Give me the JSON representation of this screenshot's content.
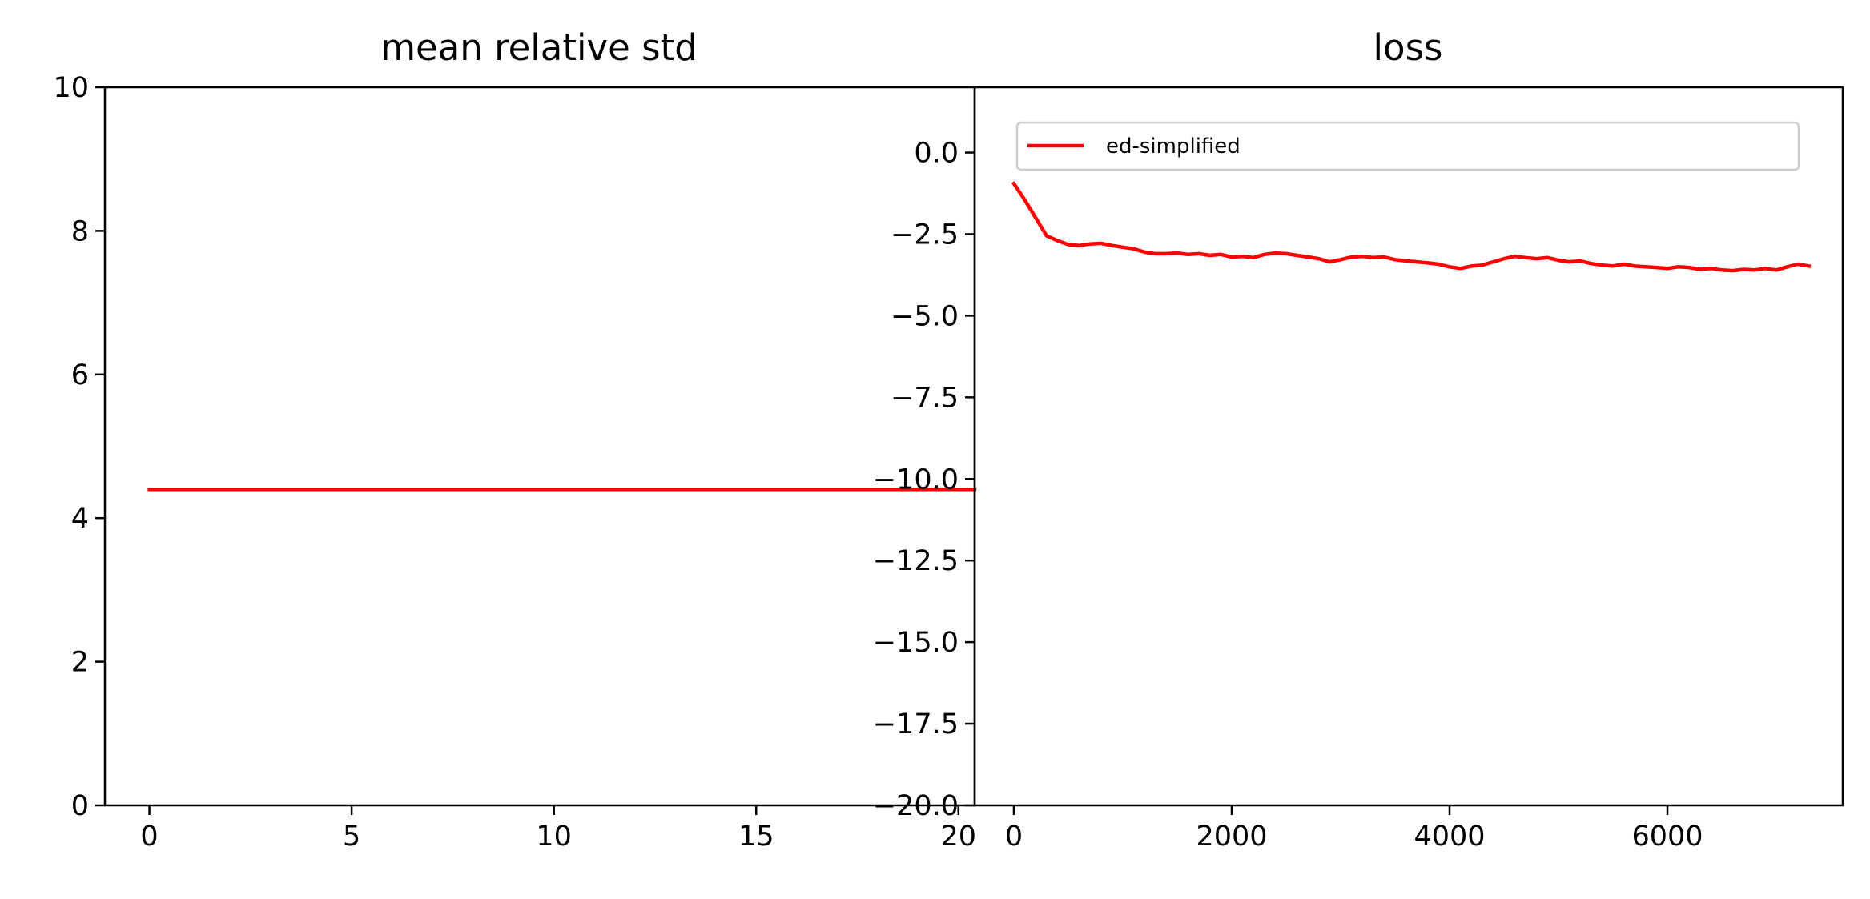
{
  "chart_data": [
    {
      "type": "line",
      "title": "mean relative std",
      "xlim": [
        -1.1,
        20.4
      ],
      "ylim": [
        0,
        10
      ],
      "xticks": [
        0,
        5,
        10,
        15,
        20
      ],
      "yticks": [
        0,
        2,
        4,
        6,
        8,
        10
      ],
      "xtick_labels": [
        "0",
        "5",
        "10",
        "15",
        "20"
      ],
      "ytick_labels": [
        "0",
        "2",
        "4",
        "6",
        "8",
        "10"
      ],
      "grid": false,
      "series": [
        {
          "color": "#ff0000",
          "x": [
            0,
            20.4
          ],
          "y": [
            4.4,
            4.4
          ]
        }
      ]
    },
    {
      "type": "line",
      "title": "loss",
      "xlim": [
        -360,
        7610
      ],
      "ylim": [
        -20,
        2
      ],
      "xticks": [
        0,
        2000,
        4000,
        6000
      ],
      "yticks": [
        0,
        -2.5,
        -5,
        -7.5,
        -10,
        -12.5,
        -15,
        -17.5,
        -20
      ],
      "xtick_labels": [
        "0",
        "2000",
        "4000",
        "6000"
      ],
      "ytick_labels": [
        "0.0",
        "−2.5",
        "−5.0",
        "−7.5",
        "−10.0",
        "−12.5",
        "−15.0",
        "−17.5",
        "−20.0"
      ],
      "grid": false,
      "legend_position": "upper-center",
      "series": [
        {
          "name": "ed-simplified",
          "color": "#ff0000",
          "x": [
            0,
            100,
            200,
            300,
            400,
            500,
            600,
            700,
            800,
            900,
            1000,
            1100,
            1200,
            1300,
            1400,
            1500,
            1600,
            1700,
            1800,
            1900,
            2000,
            2100,
            2200,
            2300,
            2400,
            2500,
            2600,
            2700,
            2800,
            2900,
            3000,
            3100,
            3200,
            3300,
            3400,
            3500,
            3600,
            3700,
            3800,
            3900,
            4000,
            4100,
            4200,
            4300,
            4400,
            4500,
            4600,
            4700,
            4800,
            4900,
            5000,
            5100,
            5200,
            5300,
            5400,
            5500,
            5600,
            5700,
            5800,
            5900,
            6000,
            6100,
            6200,
            6300,
            6400,
            6500,
            6600,
            6700,
            6800,
            6900,
            7000,
            7100,
            7200,
            7300
          ],
          "y": [
            -0.95,
            -1.45,
            -2.0,
            -2.55,
            -2.7,
            -2.82,
            -2.85,
            -2.8,
            -2.78,
            -2.85,
            -2.9,
            -2.95,
            -3.05,
            -3.1,
            -3.1,
            -3.08,
            -3.12,
            -3.1,
            -3.15,
            -3.12,
            -3.2,
            -3.18,
            -3.22,
            -3.12,
            -3.08,
            -3.1,
            -3.15,
            -3.2,
            -3.25,
            -3.35,
            -3.28,
            -3.2,
            -3.18,
            -3.22,
            -3.2,
            -3.28,
            -3.32,
            -3.35,
            -3.38,
            -3.42,
            -3.5,
            -3.55,
            -3.48,
            -3.45,
            -3.35,
            -3.25,
            -3.18,
            -3.22,
            -3.25,
            -3.22,
            -3.3,
            -3.35,
            -3.32,
            -3.4,
            -3.45,
            -3.48,
            -3.42,
            -3.48,
            -3.5,
            -3.52,
            -3.55,
            -3.5,
            -3.52,
            -3.58,
            -3.55,
            -3.6,
            -3.62,
            -3.58,
            -3.6,
            -3.55,
            -3.6,
            -3.5,
            -3.42,
            -3.48
          ]
        }
      ]
    }
  ]
}
